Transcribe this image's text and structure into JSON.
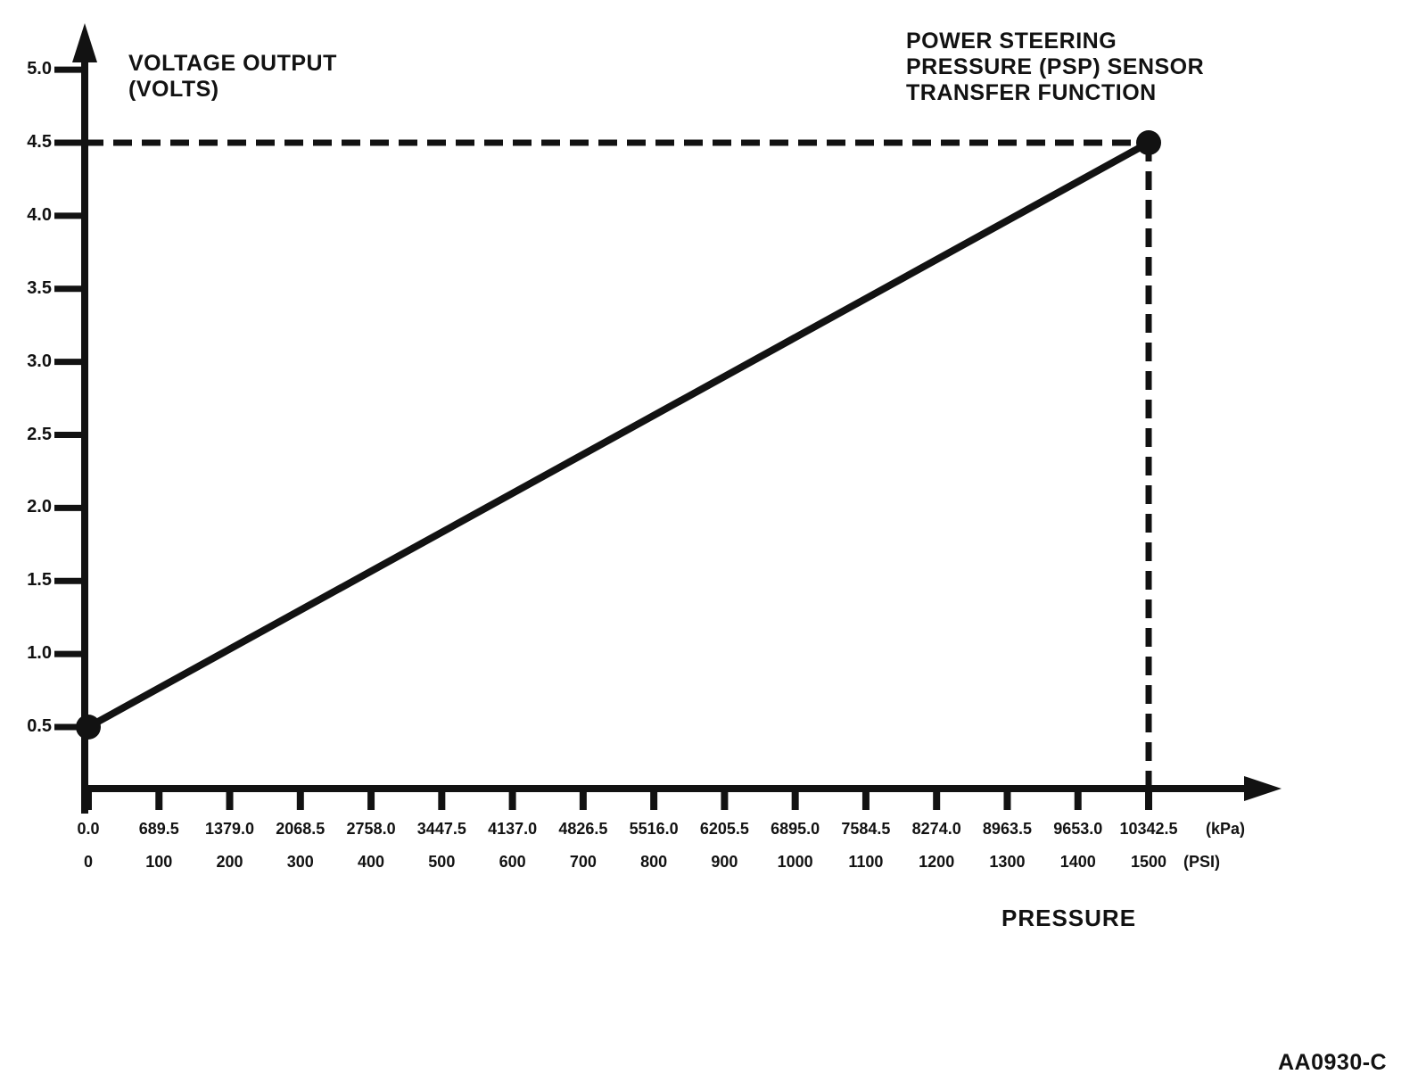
{
  "figure": {
    "y_axis_title_line1": "VOLTAGE OUTPUT",
    "y_axis_title_line2": "(VOLTS)",
    "title_line1": "POWER STEERING",
    "title_line2": "PRESSURE (PSP) SENSOR",
    "title_line3": "TRANSFER FUNCTION",
    "x_axis_title": "PRESSURE",
    "figure_code": "AA0930-C",
    "kpa_unit": "(kPa)",
    "psi_unit": "(PSI)",
    "ink_color": "#121212",
    "background_color": "#ffffff"
  },
  "chart_data": {
    "type": "line",
    "title": "POWER STEERING PRESSURE (PSP) SENSOR TRANSFER FUNCTION",
    "xlabel": "PRESSURE",
    "ylabel": "VOLTAGE OUTPUT (VOLTS)",
    "grid": false,
    "legend": false,
    "x_axis": {
      "psi_tick_values": [
        0,
        100,
        200,
        300,
        400,
        500,
        600,
        700,
        800,
        900,
        1000,
        1100,
        1200,
        1300,
        1400,
        1500
      ],
      "kpa_tick_labels": [
        "0.0",
        "689.5",
        "1379.0",
        "2068.5",
        "2758.0",
        "3447.5",
        "4137.0",
        "4826.5",
        "5516.0",
        "6205.5",
        "6895.0",
        "7584.5",
        "8274.0",
        "8963.5",
        "9653.0",
        "10342.5"
      ],
      "psi_tick_labels": [
        "0",
        "100",
        "200",
        "300",
        "400",
        "500",
        "600",
        "700",
        "800",
        "900",
        "1000",
        "1100",
        "1200",
        "1300",
        "1400",
        "1500"
      ],
      "kpa_unit_label": "(kPa)",
      "psi_unit_label": "(PSI)",
      "xlim_psi": [
        0,
        1500
      ],
      "xlim_kpa": [
        0.0,
        10342.5
      ]
    },
    "y_axis": {
      "tick_values": [
        5.0,
        4.5,
        4.0,
        3.5,
        3.0,
        2.5,
        2.0,
        1.5,
        1.0,
        0.5
      ],
      "tick_labels": [
        "5.0",
        "4.5",
        "4.0",
        "3.5",
        "3.0",
        "2.5",
        "2.0",
        "1.5",
        "1.0",
        "0.5"
      ],
      "ylim_volts": [
        0.5,
        5.0
      ]
    },
    "series": [
      {
        "name": "PSP sensor transfer function",
        "points_psi_volts": [
          [
            0,
            0.5
          ],
          [
            1500,
            4.5
          ]
        ],
        "points_kpa_volts": [
          [
            0.0,
            0.5
          ],
          [
            10342.5,
            4.5
          ]
        ],
        "style": "solid",
        "endpoint_markers": true
      }
    ],
    "guides": [
      {
        "type": "horizontal-dashed",
        "volts": 4.5
      },
      {
        "type": "vertical-dashed",
        "psi": 1500
      }
    ]
  }
}
